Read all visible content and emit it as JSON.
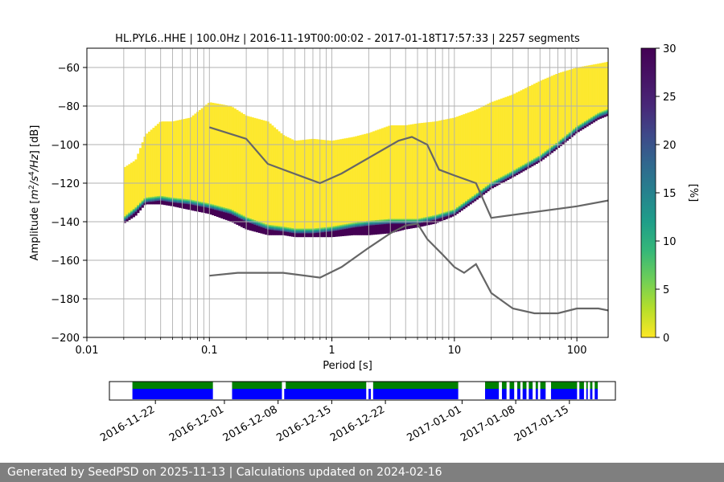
{
  "chart_data": [
    {
      "type": "heatmap",
      "title": "HL.PYL6..HHE | 100.0Hz | 2016-11-19T00:00:02 - 2017-01-18T17:57:33 | 2257 segments",
      "xlabel": "Period [s]",
      "ylabel_parts": [
        "Amplitude [",
        "m",
        "2",
        "/",
        "s",
        "4",
        "/",
        "Hz",
        "] [dB]"
      ],
      "x_scale": "log",
      "xlim": [
        0.01,
        180
      ],
      "ylim": [
        -200,
        -50
      ],
      "x_ticks": [
        {
          "value": 0.01,
          "label": "0.01"
        },
        {
          "value": 0.1,
          "label": "0.1"
        },
        {
          "value": 1,
          "label": "1"
        },
        {
          "value": 10,
          "label": "10"
        },
        {
          "value": 100,
          "label": "100"
        }
      ],
      "y_ticks": [
        {
          "value": -60,
          "label": "−60"
        },
        {
          "value": -80,
          "label": "−80"
        },
        {
          "value": -100,
          "label": "−100"
        },
        {
          "value": -120,
          "label": "−120"
        },
        {
          "value": -140,
          "label": "−140"
        },
        {
          "value": -160,
          "label": "−160"
        },
        {
          "value": -180,
          "label": "−180"
        },
        {
          "value": -200,
          "label": "−200"
        }
      ],
      "grid": true,
      "colorbar": {
        "label": "[%]",
        "range": [
          0,
          30
        ],
        "ticks": [
          {
            "value": 0,
            "label": "0"
          },
          {
            "value": 5,
            "label": "5"
          },
          {
            "value": 10,
            "label": "10"
          },
          {
            "value": 15,
            "label": "15"
          },
          {
            "value": 20,
            "label": "20"
          },
          {
            "value": 25,
            "label": "25"
          },
          {
            "value": 30,
            "label": "30"
          }
        ],
        "colormap": "viridis_r"
      },
      "psd_band": {
        "period": [
          0.02,
          0.025,
          0.03,
          0.04,
          0.05,
          0.07,
          0.1,
          0.15,
          0.2,
          0.3,
          0.4,
          0.5,
          0.7,
          1,
          1.5,
          2,
          3,
          4,
          5,
          7,
          10,
          15,
          20,
          30,
          50,
          70,
          100,
          150,
          180
        ],
        "mode_db": [
          -140,
          -135,
          -130,
          -129,
          -130,
          -131,
          -133,
          -136,
          -140,
          -144,
          -145,
          -146,
          -146,
          -145,
          -143,
          -142,
          -141,
          -141,
          -141,
          -139,
          -136,
          -128,
          -122,
          -116,
          -108,
          -101,
          -93,
          -86,
          -84
        ],
        "lower_edge_db": [
          -141,
          -137,
          -131,
          -131,
          -132,
          -134,
          -136,
          -140,
          -144,
          -147,
          -147,
          -148,
          -148,
          -148,
          -147,
          -147,
          -146,
          -144,
          -143,
          -141,
          -137,
          -129,
          -123,
          -117,
          -109,
          -102,
          -94,
          -87,
          -85
        ],
        "upper_edge_db": [
          -112,
          -108,
          -95,
          -88,
          -88,
          -86,
          -78,
          -80,
          -85,
          -88,
          -95,
          -98,
          -97,
          -98,
          -96,
          -94,
          -90,
          -90,
          -89,
          -88,
          -86,
          -82,
          -78,
          -74,
          -67,
          -63,
          -60,
          -58,
          -57
        ]
      },
      "series": [
        {
          "name_hidden": true,
          "color": "#666666",
          "x": [
            0.1,
            0.2,
            0.3,
            0.8,
            1.2,
            3.5,
            4.5,
            6,
            7.5,
            10,
            15,
            20,
            100,
            180
          ],
          "y": [
            -91,
            -97,
            -110,
            -120,
            -115,
            -98,
            -96,
            -100,
            -113,
            -116,
            -120,
            -138,
            -132,
            -129
          ]
        },
        {
          "name_hidden": true,
          "color": "#666666",
          "x": [
            0.1,
            0.17,
            0.4,
            0.8,
            1.2,
            2,
            3,
            4,
            5,
            6,
            8,
            10,
            12,
            15,
            20,
            30,
            45,
            70,
            100,
            150,
            180
          ],
          "y": [
            -168,
            -166.5,
            -166.5,
            -169,
            -163.5,
            -153.5,
            -146,
            -142,
            -141,
            -149,
            -157,
            -163.5,
            -166.5,
            -162,
            -177,
            -185,
            -187.5,
            -187.5,
            -185,
            -185,
            -186
          ]
        }
      ]
    },
    {
      "type": "timeline",
      "date_range": [
        "2016-11-16",
        "2017-01-21"
      ],
      "x_ticks": [
        "2016-11-22",
        "2016-12-01",
        "2016-12-08",
        "2016-12-15",
        "2016-12-22",
        "2017-01-01",
        "2017-01-08",
        "2017-01-15"
      ],
      "data_colors": {
        "processed": "#008000",
        "available": "#0000ff"
      },
      "segments": [
        [
          "2016-11-19",
          "2016-11-29.5"
        ],
        [
          "2016-12-02",
          "2016-12-08.5"
        ],
        [
          "2016-12-08.8",
          "2016-12-19.5"
        ],
        [
          "2016-12-19.8",
          "2016-12-20.1"
        ],
        [
          "2016-12-20.4",
          "2016-12-31.5"
        ],
        [
          "2017-01-04",
          "2017-01-05.8"
        ],
        [
          "2017-01-06.2",
          "2017-01-06.8"
        ],
        [
          "2017-01-07.2",
          "2017-01-07.8"
        ],
        [
          "2017-01-08.2",
          "2017-01-08.6"
        ],
        [
          "2017-01-08.9",
          "2017-01-09.4"
        ],
        [
          "2017-01-09.7",
          "2017-01-10.2"
        ],
        [
          "2017-01-10.6",
          "2017-01-10.9"
        ],
        [
          "2017-01-11.2",
          "2017-01-11.9"
        ],
        [
          "2017-01-12.6",
          "2017-01-16"
        ],
        [
          "2017-01-16.3",
          "2017-01-16.9"
        ],
        [
          "2017-01-17.2",
          "2017-01-17.4"
        ],
        [
          "2017-01-17.7",
          "2017-01-18"
        ],
        [
          "2017-01-18.3",
          "2017-01-18.7"
        ]
      ],
      "processed_gaps": [
        [
          "2016-12-08.6",
          "2016-12-09"
        ],
        [
          "2016-12-19.8",
          "2016-12-20.3"
        ],
        [
          "2017-01-12",
          "2017-01-12.6"
        ]
      ]
    }
  ],
  "footer": {
    "text": "Generated by SeedPSD on 2025-11-13 | Calculations updated on 2024-02-16"
  }
}
